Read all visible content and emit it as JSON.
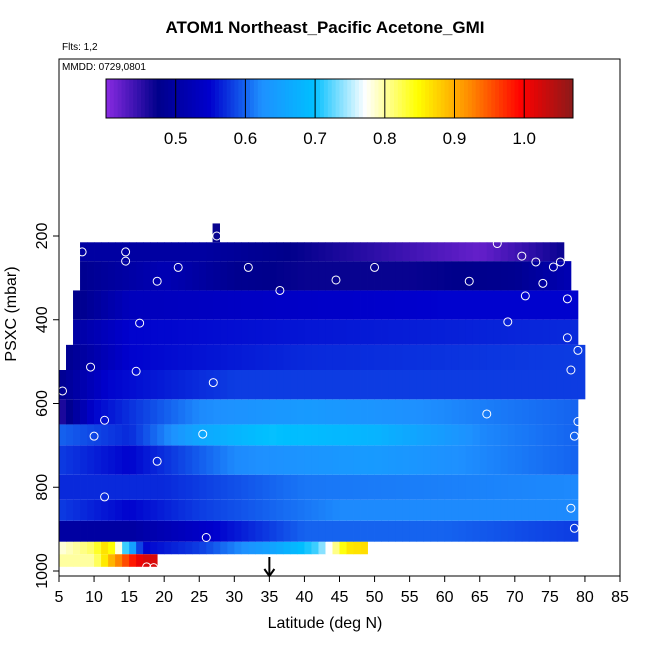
{
  "chart_data": {
    "type": "heatmap",
    "title": "ATOM1 Northeast_Pacific Acetone_GMI",
    "notes": [
      "Flts: 1,2",
      "MMDD: 0729,0801"
    ],
    "xlabel": "Latitude (deg N)",
    "ylabel": "PSXC (mbar)",
    "xlim": [
      5,
      85
    ],
    "ylim": [
      1000,
      0
    ],
    "x_ticks": [
      5,
      10,
      15,
      20,
      25,
      30,
      35,
      40,
      45,
      50,
      55,
      60,
      65,
      70,
      75,
      80,
      85
    ],
    "y_ticks": [
      200,
      400,
      600,
      800,
      1000
    ],
    "colorbar": {
      "ticks": [
        0.5,
        0.6,
        0.7,
        0.8,
        0.9,
        1.0
      ],
      "tick_labels": [
        "0.5",
        "0.6",
        "0.7",
        "0.8",
        "0.9",
        "1.0"
      ],
      "range": [
        0.4,
        1.07
      ],
      "colors": [
        "#8a2be2",
        "#00008b",
        "#0000cd",
        "#1e90ff",
        "#00bfff",
        "#ffffff",
        "#ffff00",
        "#ff8c00",
        "#ff0000",
        "#8b1a1a"
      ]
    },
    "bands": [
      {
        "p": [
          930,
          960
        ],
        "lat": [
          5,
          49
        ],
        "values": [
          [
            5,
            0.78
          ],
          [
            10,
            0.82
          ],
          [
            12,
            0.88
          ],
          [
            17,
            0.55
          ],
          [
            25,
            0.58
          ],
          [
            35,
            0.65
          ],
          [
            42,
            0.72
          ],
          [
            46,
            0.86
          ],
          [
            49,
            0.87
          ]
        ]
      },
      {
        "p": [
          880,
          930
        ],
        "lat": [
          5,
          79
        ],
        "values": [
          [
            5,
            0.5
          ],
          [
            15,
            0.5
          ],
          [
            25,
            0.54
          ],
          [
            40,
            0.6
          ],
          [
            60,
            0.6
          ],
          [
            79,
            0.58
          ]
        ]
      },
      {
        "p": [
          830,
          880
        ],
        "lat": [
          5,
          79
        ],
        "values": [
          [
            5,
            0.58
          ],
          [
            15,
            0.55
          ],
          [
            25,
            0.58
          ],
          [
            45,
            0.62
          ],
          [
            79,
            0.62
          ]
        ]
      },
      {
        "p": [
          770,
          830
        ],
        "lat": [
          5,
          79
        ],
        "values": [
          [
            5,
            0.57
          ],
          [
            20,
            0.57
          ],
          [
            40,
            0.61
          ],
          [
            79,
            0.62
          ]
        ]
      },
      {
        "p": [
          700,
          770
        ],
        "lat": [
          5,
          79
        ],
        "values": [
          [
            5,
            0.58
          ],
          [
            15,
            0.55
          ],
          [
            30,
            0.62
          ],
          [
            50,
            0.64
          ],
          [
            79,
            0.6
          ]
        ]
      },
      {
        "p": [
          650,
          700
        ],
        "lat": [
          5,
          79
        ],
        "values": [
          [
            5,
            0.6
          ],
          [
            15,
            0.57
          ],
          [
            25,
            0.66
          ],
          [
            35,
            0.7
          ],
          [
            50,
            0.68
          ],
          [
            65,
            0.62
          ],
          [
            79,
            0.6
          ]
        ]
      },
      {
        "p": [
          590,
          650
        ],
        "lat": [
          5,
          79
        ],
        "values": [
          [
            5,
            0.45
          ],
          [
            10,
            0.55
          ],
          [
            25,
            0.62
          ],
          [
            40,
            0.64
          ],
          [
            60,
            0.62
          ],
          [
            79,
            0.6
          ]
        ]
      },
      {
        "p": [
          520,
          590
        ],
        "lat": [
          5,
          80
        ],
        "values": [
          [
            5,
            0.48
          ],
          [
            12,
            0.55
          ],
          [
            30,
            0.58
          ],
          [
            60,
            0.58
          ],
          [
            80,
            0.58
          ]
        ]
      },
      {
        "p": [
          460,
          520
        ],
        "lat": [
          6,
          80
        ],
        "values": [
          [
            6,
            0.48
          ],
          [
            15,
            0.55
          ],
          [
            40,
            0.57
          ],
          [
            80,
            0.58
          ]
        ]
      },
      {
        "p": [
          400,
          460
        ],
        "lat": [
          7,
          79
        ],
        "values": [
          [
            7,
            0.5
          ],
          [
            15,
            0.55
          ],
          [
            40,
            0.56
          ],
          [
            79,
            0.57
          ]
        ]
      },
      {
        "p": [
          330,
          400
        ],
        "lat": [
          7,
          79
        ],
        "values": [
          [
            7,
            0.47
          ],
          [
            15,
            0.53
          ],
          [
            35,
            0.54
          ],
          [
            60,
            0.55
          ],
          [
            79,
            0.55
          ]
        ]
      },
      {
        "p": [
          260,
          330
        ],
        "lat": [
          8,
          78
        ],
        "values": [
          [
            8,
            0.48
          ],
          [
            20,
            0.52
          ],
          [
            30,
            0.48
          ],
          [
            40,
            0.47
          ],
          [
            55,
            0.47
          ],
          [
            70,
            0.48
          ],
          [
            78,
            0.52
          ]
        ]
      },
      {
        "p": [
          215,
          260
        ],
        "lat": [
          8,
          77
        ],
        "values": [
          [
            8,
            0.5
          ],
          [
            25,
            0.5
          ],
          [
            40,
            0.47
          ],
          [
            55,
            0.44
          ],
          [
            65,
            0.42
          ],
          [
            70,
            0.44
          ],
          [
            77,
            0.47
          ]
        ]
      },
      {
        "p": [
          170,
          215
        ],
        "lat": [
          26.9,
          27.9
        ],
        "values": [
          [
            27,
            0.47
          ]
        ]
      },
      {
        "p": [
          960,
          990
        ],
        "lat": [
          5,
          19
        ],
        "values": [
          [
            5,
            0.8
          ],
          [
            10,
            0.8
          ],
          [
            12,
            0.88
          ],
          [
            15,
            0.97
          ],
          [
            17,
            1.02
          ],
          [
            19,
            1.02
          ]
        ]
      }
    ],
    "observation_points": [
      {
        "lat": 8.3,
        "p": 238
      },
      {
        "lat": 14.5,
        "p": 238
      },
      {
        "lat": 14.5,
        "p": 260
      },
      {
        "lat": 22,
        "p": 275
      },
      {
        "lat": 19,
        "p": 308
      },
      {
        "lat": 27.5,
        "p": 200
      },
      {
        "lat": 32,
        "p": 275
      },
      {
        "lat": 36.5,
        "p": 330
      },
      {
        "lat": 44.5,
        "p": 305
      },
      {
        "lat": 50,
        "p": 275
      },
      {
        "lat": 63.5,
        "p": 308
      },
      {
        "lat": 67.5,
        "p": 218
      },
      {
        "lat": 71,
        "p": 248
      },
      {
        "lat": 73,
        "p": 262
      },
      {
        "lat": 74,
        "p": 313
      },
      {
        "lat": 75.5,
        "p": 274
      },
      {
        "lat": 76.5,
        "p": 262
      },
      {
        "lat": 71.5,
        "p": 343
      },
      {
        "lat": 77.5,
        "p": 350
      },
      {
        "lat": 69,
        "p": 405
      },
      {
        "lat": 16.5,
        "p": 408
      },
      {
        "lat": 77.5,
        "p": 443
      },
      {
        "lat": 79,
        "p": 473
      },
      {
        "lat": 9.5,
        "p": 513
      },
      {
        "lat": 16,
        "p": 523
      },
      {
        "lat": 78,
        "p": 520
      },
      {
        "lat": 27,
        "p": 550
      },
      {
        "lat": 5.5,
        "p": 570
      },
      {
        "lat": 11.5,
        "p": 640
      },
      {
        "lat": 66,
        "p": 625
      },
      {
        "lat": 79,
        "p": 643
      },
      {
        "lat": 25.5,
        "p": 673
      },
      {
        "lat": 10,
        "p": 678
      },
      {
        "lat": 78.5,
        "p": 678
      },
      {
        "lat": 19,
        "p": 738
      },
      {
        "lat": 11.5,
        "p": 823
      },
      {
        "lat": 78,
        "p": 850
      },
      {
        "lat": 78.5,
        "p": 898
      },
      {
        "lat": 26,
        "p": 920
      },
      {
        "lat": 17.5,
        "p": 990
      },
      {
        "lat": 18.5,
        "p": 992
      }
    ],
    "marker": {
      "lat": 35,
      "p": 1000
    }
  }
}
